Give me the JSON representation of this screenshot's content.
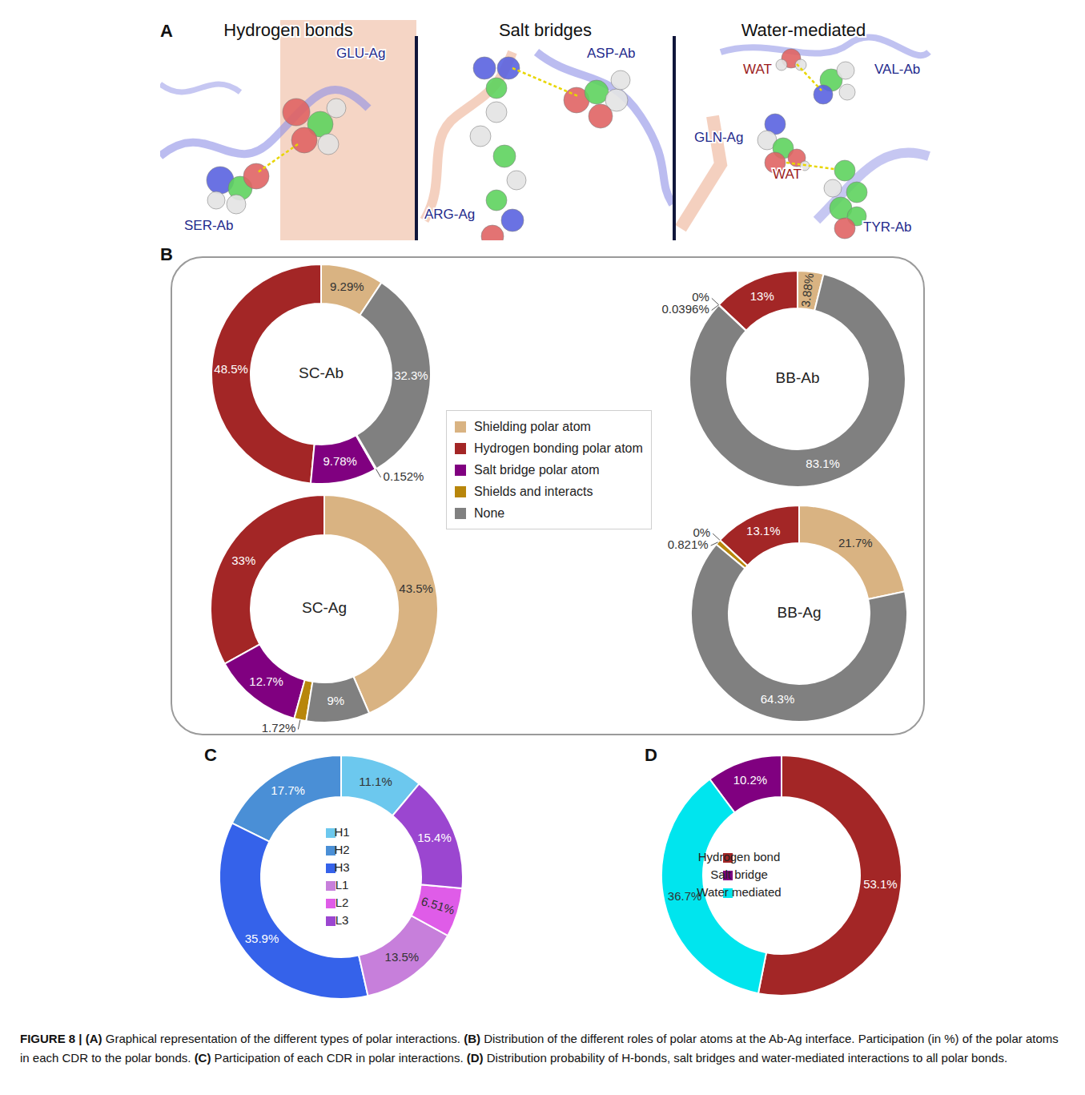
{
  "panel_letters": [
    "A",
    "B",
    "C",
    "D"
  ],
  "panel_a": {
    "sections": [
      {
        "title": "Hydrogen bonds",
        "labels": [
          {
            "text": "GLU-Ag",
            "color": "#1f2a8c"
          },
          {
            "text": "SER-Ab",
            "color": "#1f2a8c"
          }
        ]
      },
      {
        "title": "Salt bridges",
        "labels": [
          {
            "text": "ASP-Ab",
            "color": "#1f2a8c"
          },
          {
            "text": "ARG-Ag",
            "color": "#1f2a8c"
          }
        ]
      },
      {
        "title": "Water-mediated",
        "labels": [
          {
            "text": "WAT",
            "color": "#9b1c1c"
          },
          {
            "text": "VAL-Ab",
            "color": "#1f2a8c"
          },
          {
            "text": "GLN-Ag",
            "color": "#1f2a8c"
          },
          {
            "text": "WAT",
            "color": "#9b1c1c"
          },
          {
            "text": "TYR-Ab",
            "color": "#1f2a8c"
          }
        ]
      }
    ]
  },
  "chart_data": [
    {
      "type": "donut",
      "title": "SC-Ab",
      "categories": [
        "Shielding polar atom",
        "Hydrogen bonding polar atom",
        "Salt bridge polar atom",
        "Shields and interacts",
        "None"
      ],
      "values": [
        9.29,
        48.5,
        9.78,
        0.152,
        32.3
      ],
      "value_labels": [
        "9.29%",
        "48.5%",
        "9.78%",
        "0.152%",
        "32.3%"
      ],
      "colors": [
        "#d9b382",
        "#a32626",
        "#800080",
        "#b8860b",
        "#808080"
      ],
      "data_labels": true,
      "legend": "right"
    },
    {
      "type": "donut",
      "title": "BB-Ab",
      "categories": [
        "Shielding polar atom",
        "Hydrogen bonding polar atom",
        "Salt bridge polar atom",
        "Shields and interacts",
        "None"
      ],
      "values": [
        3.88,
        13,
        0,
        0.0396,
        83.1
      ],
      "value_labels": [
        "3.88%",
        "13%",
        "0%",
        "0.0396%",
        "83.1%"
      ],
      "colors": [
        "#d9b382",
        "#a32626",
        "#800080",
        "#b8860b",
        "#808080"
      ],
      "data_labels": true
    },
    {
      "type": "donut",
      "title": "SC-Ag",
      "categories": [
        "Shielding polar atom",
        "Hydrogen bonding polar atom",
        "Salt bridge polar atom",
        "Shields and interacts",
        "None"
      ],
      "values": [
        43.5,
        33,
        12.7,
        1.72,
        9
      ],
      "value_labels": [
        "43.5%",
        "33%",
        "12.7%",
        "1.72%",
        "9%"
      ],
      "colors": [
        "#d9b382",
        "#a32626",
        "#800080",
        "#b8860b",
        "#808080"
      ],
      "data_labels": true
    },
    {
      "type": "donut",
      "title": "BB-Ag",
      "categories": [
        "Shielding polar atom",
        "Hydrogen bonding polar atom",
        "Salt bridge polar atom",
        "Shields and interacts",
        "None"
      ],
      "values": [
        21.7,
        13.1,
        0,
        0.821,
        64.3
      ],
      "value_labels": [
        "21.7%",
        "13.1%",
        "0%",
        "0.821%",
        "64.3%"
      ],
      "colors": [
        "#d9b382",
        "#a32626",
        "#800080",
        "#b8860b",
        "#808080"
      ],
      "data_labels": true
    },
    {
      "type": "donut",
      "categories": [
        "H1",
        "H2",
        "H3",
        "L1",
        "L2",
        "L3"
      ],
      "values": [
        11.1,
        17.7,
        35.9,
        13.5,
        6.51,
        15.4
      ],
      "value_labels": [
        "11.1%",
        "17.7%",
        "35.9%",
        "13.5%",
        "6.51%",
        "15.4%"
      ],
      "colors": [
        "#6cc8ee",
        "#4a8fd6",
        "#3562ea",
        "#c77fdb",
        "#df5ce8",
        "#9b46d0"
      ],
      "data_labels": true,
      "legend": "center"
    },
    {
      "type": "donut",
      "categories": [
        "Hydrogen bond",
        "Salt bridge",
        "Water mediated"
      ],
      "values": [
        53.1,
        10.2,
        36.7
      ],
      "value_labels": [
        "53.1%",
        "10.2%",
        "36.7%"
      ],
      "colors": [
        "#a32626",
        "#800080",
        "#00e5ee"
      ],
      "data_labels": true,
      "legend": "center"
    }
  ],
  "caption": [
    {
      "text": "FIGURE 8 | ",
      "bold": true
    },
    {
      "text": "(A)",
      "bold": true
    },
    {
      "text": " Graphical representation of the different types of polar interactions. "
    },
    {
      "text": "(B)",
      "bold": true
    },
    {
      "text": " Distribution of the different roles of polar atoms at the Ab-Ag interface. Participation (in %) of the polar atoms in each CDR to the polar bonds. "
    },
    {
      "text": "(C)",
      "bold": true
    },
    {
      "text": " Participation of each CDR in polar interactions. "
    },
    {
      "text": "(D)",
      "bold": true
    },
    {
      "text": " Distribution probability of H-bonds, salt bridges and water-mediated interactions to all polar bonds."
    }
  ]
}
